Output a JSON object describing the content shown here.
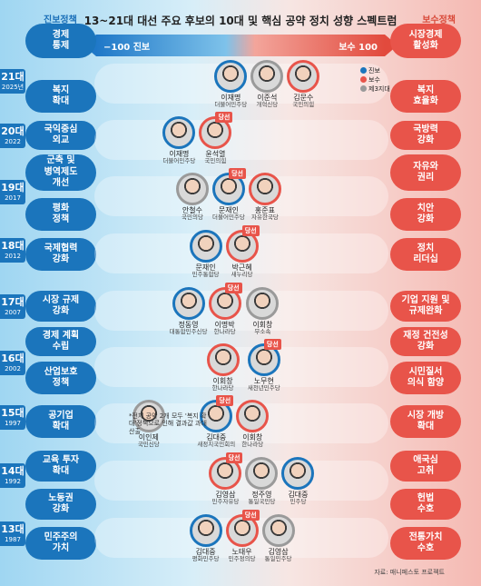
{
  "title": "13~21대 대선 주요 후보의 10대 및 핵심 공약 정치 성향 스펙트럼",
  "side_left": "진보정책",
  "side_right": "보수정책",
  "scale": {
    "left": "−100 진보",
    "right": "보수  100"
  },
  "legend": {
    "prog": "진보",
    "cons": "보수",
    "third": "제3지대"
  },
  "winner_label": "당선",
  "note": "*전체 공약 2개 모두 '복지 확대'정책으로 인해 결과값 과대 산출",
  "source": "자료: 매니페스토 프로젝트",
  "colors": {
    "prog": "#1b75bc",
    "cons": "#e8544a",
    "third": "#9a9a9a"
  },
  "left_pills": [
    {
      "label": "경제\n통제"
    },
    {
      "label": "복지\n확대"
    },
    {
      "label": "국익중심\n외교"
    },
    {
      "label": "군축 및\n병역제도\n개선"
    },
    {
      "label": "평화\n정책"
    },
    {
      "label": "국제협력\n강화"
    },
    {
      "label": "시장 규제\n강화"
    },
    {
      "label": "경제 계획\n수립"
    },
    {
      "label": "산업보호\n정책"
    },
    {
      "label": "공기업\n확대"
    },
    {
      "label": "교육 투자\n확대"
    },
    {
      "label": "노동권\n강화"
    },
    {
      "label": "민주주의\n가치"
    }
  ],
  "right_pills": [
    {
      "label": "시장경제\n활성화"
    },
    {
      "label": "복지\n효율화"
    },
    {
      "label": "국방력\n강화"
    },
    {
      "label": "자유와\n권리"
    },
    {
      "label": "치안\n강화"
    },
    {
      "label": "정치\n리더십"
    },
    {
      "label": "기업 지원 및\n규제완화"
    },
    {
      "label": "재정 건전성\n강화"
    },
    {
      "label": "시민질서\n의식 함양"
    },
    {
      "label": "시장 개방\n확대"
    },
    {
      "label": "애국심\n고취"
    },
    {
      "label": "헌법\n수호"
    },
    {
      "label": "전통가치\n수호"
    }
  ],
  "chart_data": {
    "type": "scatter",
    "title": "13~21대 대선 주요 후보의 10대 및 핵심 공약 정치 성향 스펙트럼",
    "xlabel": "",
    "ylabel": "",
    "xlim": [
      -100,
      100
    ],
    "elections": [
      {
        "year": "21대",
        "sub": "2025년",
        "candidates": [
          {
            "name": "이재명",
            "party": "더불어민주당",
            "camp": "prog",
            "winner": false,
            "x": -8
          },
          {
            "name": "이준석",
            "party": "개혁신당",
            "camp": "third",
            "winner": false,
            "x": 0
          },
          {
            "name": "김문수",
            "party": "국민의힘",
            "camp": "cons",
            "winner": false,
            "x": 10
          }
        ]
      },
      {
        "year": "20대",
        "sub": "2022",
        "candidates": [
          {
            "name": "이재명",
            "party": "더불어민주당",
            "camp": "prog",
            "winner": false,
            "x": -47
          },
          {
            "name": "윤석열",
            "party": "국민의힘",
            "camp": "cons",
            "winner": true,
            "x": -30
          }
        ]
      },
      {
        "year": "19대",
        "sub": "2017",
        "candidates": [
          {
            "name": "안철수",
            "party": "국민의당",
            "camp": "third",
            "winner": false,
            "x": -37
          },
          {
            "name": "문재인",
            "party": "더불어민주당",
            "camp": "prog",
            "winner": true,
            "x": -14
          },
          {
            "name": "홍준표",
            "party": "자유한국당",
            "camp": "cons",
            "winner": false,
            "x": -3
          }
        ]
      },
      {
        "year": "18대",
        "sub": "2012",
        "candidates": [
          {
            "name": "문재인",
            "party": "민주통합당",
            "camp": "prog",
            "winner": false,
            "x": -27
          },
          {
            "name": "박근혜",
            "party": "새누리당",
            "camp": "cons",
            "winner": true,
            "x": -15
          }
        ]
      },
      {
        "year": "17대",
        "sub": "2007",
        "candidates": [
          {
            "name": "정동영",
            "party": "대통합민주신당",
            "camp": "prog",
            "winner": false,
            "x": -40
          },
          {
            "name": "이명박",
            "party": "한나라당",
            "camp": "cons",
            "winner": true,
            "x": -15
          },
          {
            "name": "이회창",
            "party": "무소속",
            "camp": "third",
            "winner": false,
            "x": 16
          }
        ]
      },
      {
        "year": "16대",
        "sub": "2002",
        "candidates": [
          {
            "name": "이회창",
            "party": "한나라당",
            "camp": "cons",
            "winner": false,
            "x": -14
          },
          {
            "name": "노무현",
            "party": "새천년민주당",
            "camp": "prog",
            "winner": true,
            "x": 17
          }
        ]
      },
      {
        "year": "15대",
        "sub": "1997",
        "candidates": [
          {
            "name": "이인제",
            "party": "국민신당",
            "camp": "third",
            "winner": false,
            "x": -70
          },
          {
            "name": "김대중",
            "party": "새정치국민회의",
            "camp": "prog",
            "winner": true,
            "x": -19
          },
          {
            "name": "이회창",
            "party": "한나라당",
            "camp": "cons",
            "winner": false,
            "x": 0
          }
        ]
      },
      {
        "year": "14대",
        "sub": "1992",
        "candidates": [
          {
            "name": "김영삼",
            "party": "민주자유당",
            "camp": "cons",
            "winner": true,
            "x": -12
          },
          {
            "name": "정주영",
            "party": "통일국민당",
            "camp": "third",
            "winner": false,
            "x": 0
          },
          {
            "name": "김대중",
            "party": "민주당",
            "camp": "prog",
            "winner": false,
            "x": 12
          }
        ]
      },
      {
        "year": "13대",
        "sub": "1987",
        "candidates": [
          {
            "name": "김대중",
            "party": "평화민주당",
            "camp": "prog",
            "winner": false,
            "x": -27
          },
          {
            "name": "노태우",
            "party": "민주정의당",
            "camp": "cons",
            "winner": true,
            "x": -15
          },
          {
            "name": "김영삼",
            "party": "통일민주당",
            "camp": "third",
            "winner": false,
            "x": -2
          }
        ]
      }
    ]
  }
}
